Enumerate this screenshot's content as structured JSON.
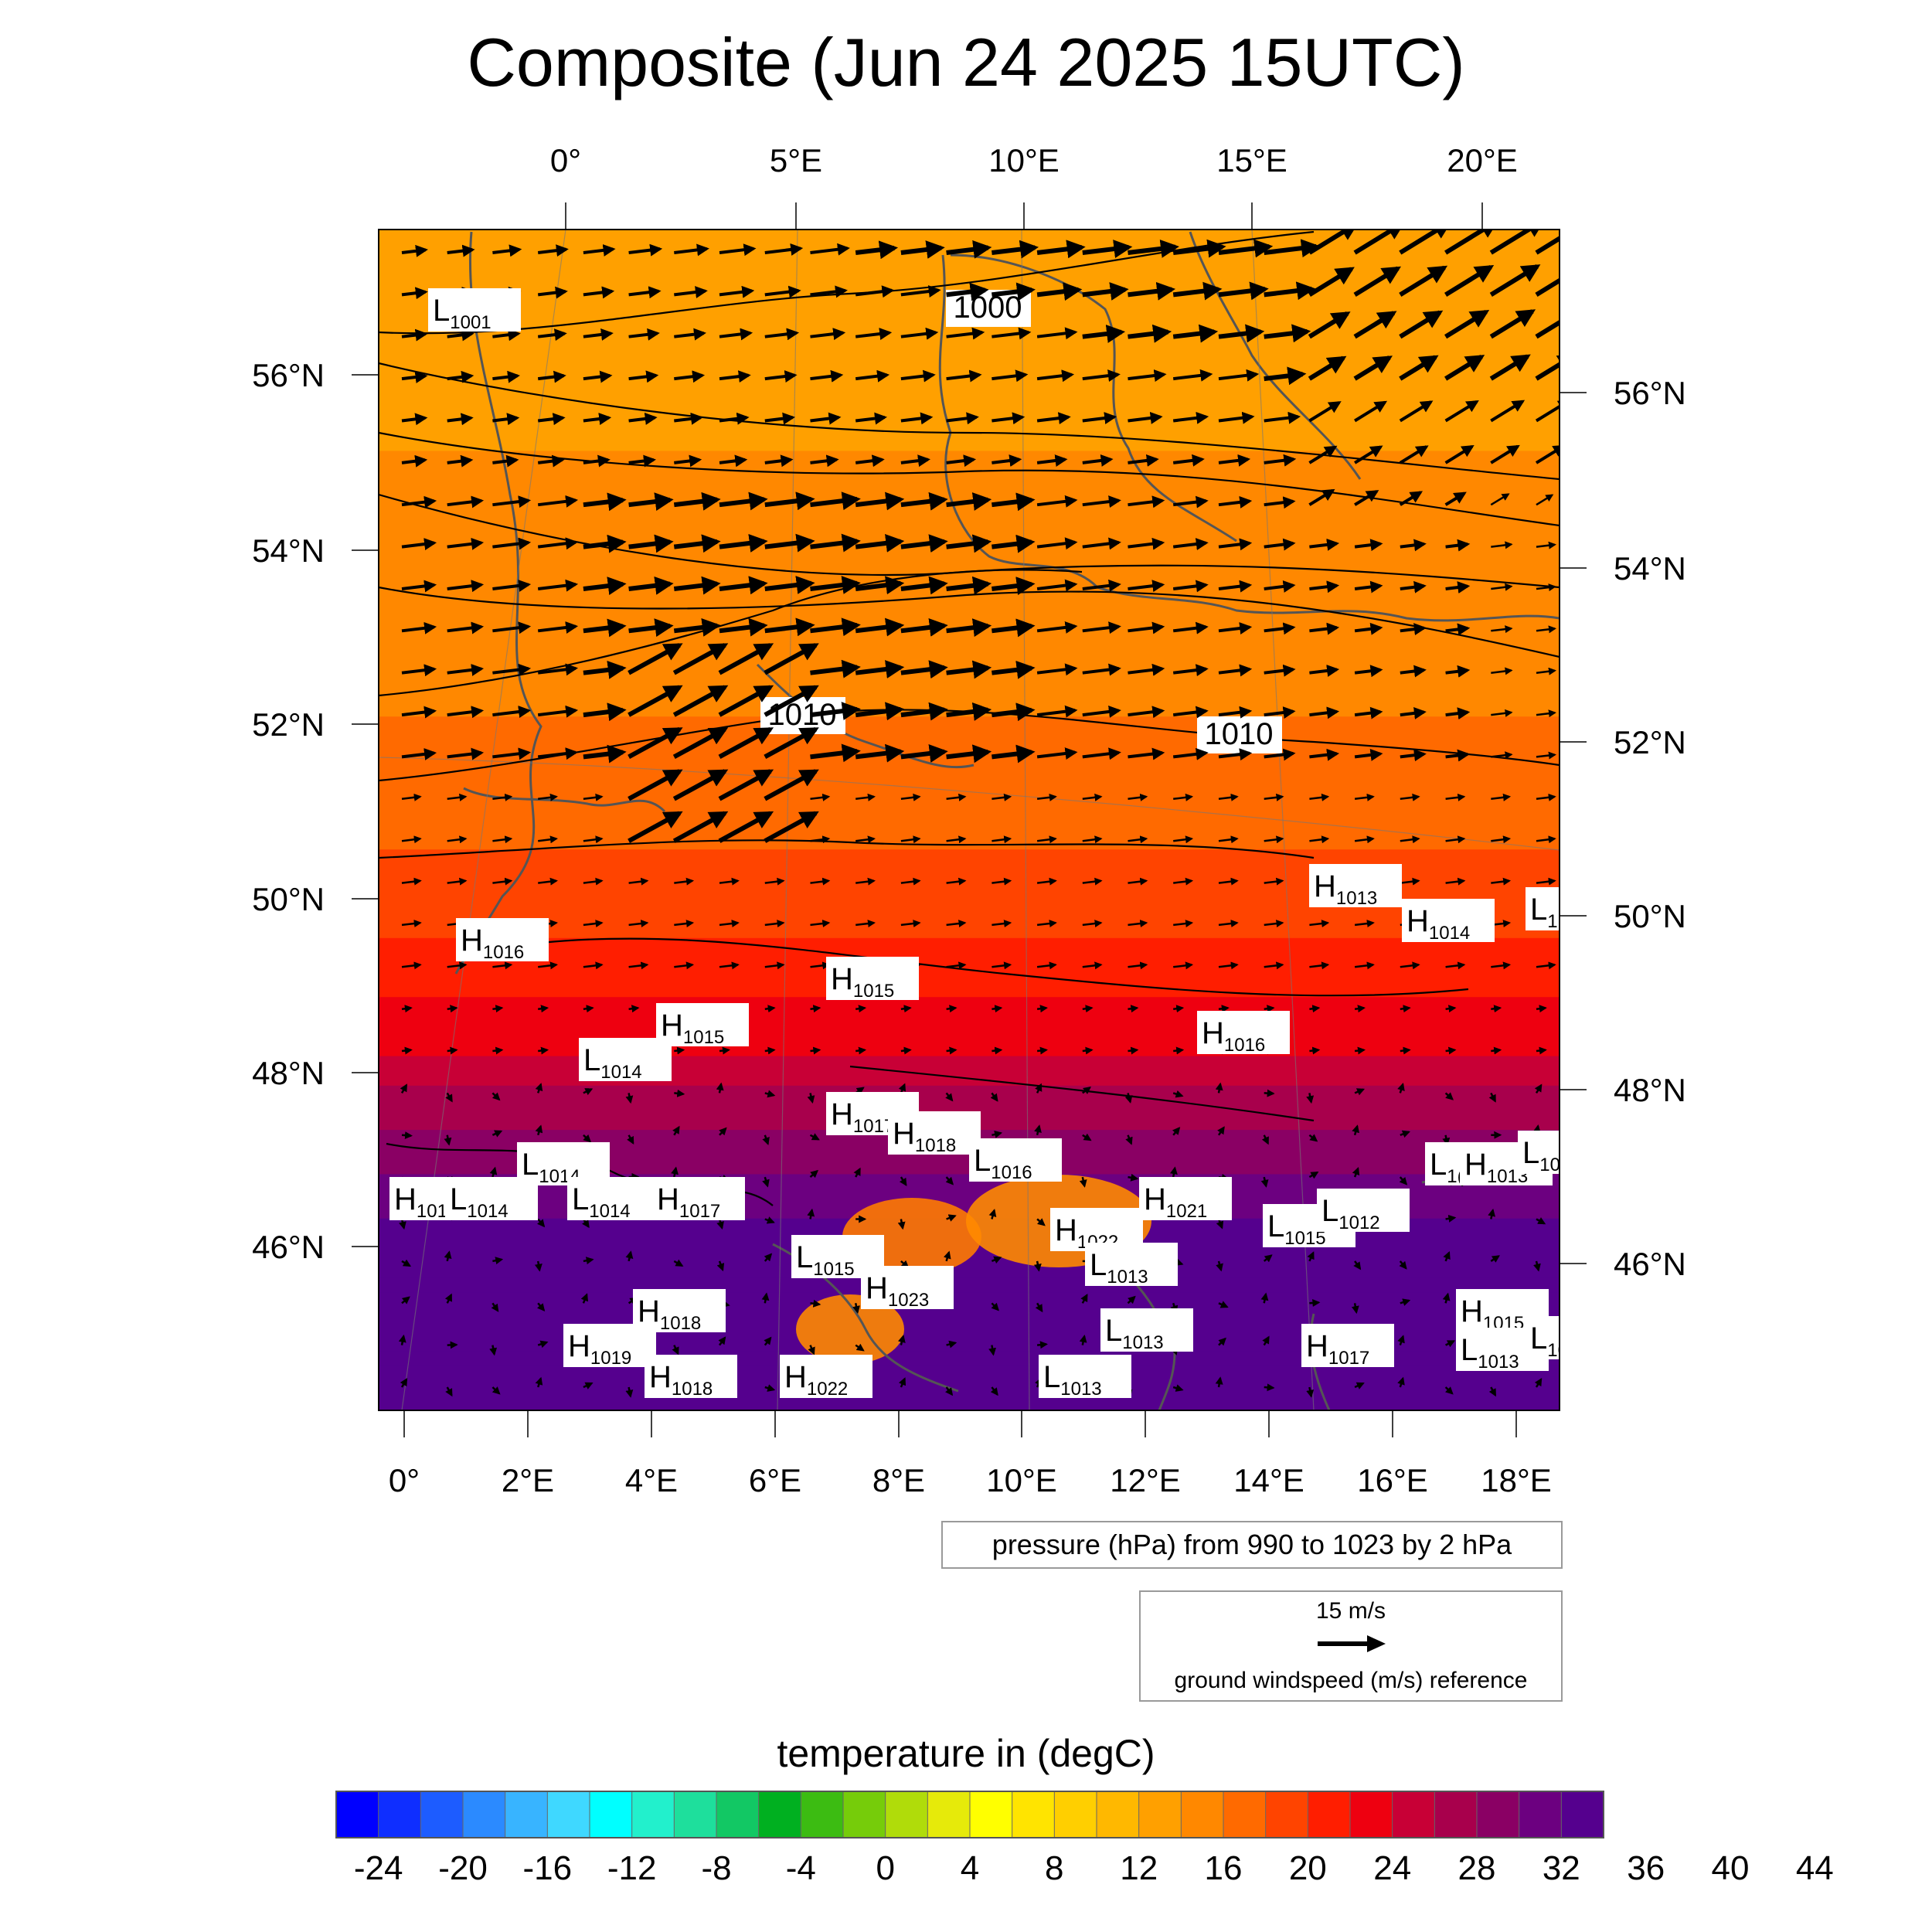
{
  "title": "Composite (Jun 24 2025 15UTC)",
  "colors": {
    "accent": "#000000",
    "colorbar": [
      "#0000ff",
      "#0f2eff",
      "#1d5cff",
      "#2b8aff",
      "#38b4ff",
      "#3fd8ff",
      "#00ffff",
      "#22f0cc",
      "#1edf9c",
      "#12c864",
      "#00b020",
      "#3cbc12",
      "#76cc0a",
      "#b0dc0a",
      "#e6ea0a",
      "#ffff00",
      "#ffe400",
      "#ffcf00",
      "#ffb800",
      "#ffa000",
      "#ff8800",
      "#ff6a00",
      "#ff4400",
      "#ff1e00",
      "#ee0010",
      "#c80036",
      "#a8004c",
      "#8a0064",
      "#6c0080",
      "#55008e"
    ]
  },
  "chart_data": {
    "type": "heatmap",
    "projection": "lambert_conformal",
    "lon_range": [
      -0.5,
      18.8
    ],
    "lat_range": [
      44.2,
      57.5
    ],
    "top_lon_ticks": [
      "0°",
      "5°E",
      "10°E",
      "15°E",
      "20°E"
    ],
    "bottom_lon_ticks": [
      "0°",
      "2°E",
      "4°E",
      "6°E",
      "8°E",
      "10°E",
      "12°E",
      "14°E",
      "16°E",
      "18°E"
    ],
    "left_lat_ticks": [
      "56°N",
      "54°N",
      "52°N",
      "50°N",
      "48°N",
      "46°N"
    ],
    "right_lat_ticks": [
      "56°N",
      "54°N",
      "52°N",
      "50°N",
      "48°N",
      "46°N"
    ],
    "temperature_field": {
      "unit": "degC",
      "by_latitude": [
        [
          57.5,
          13
        ],
        [
          55,
          14
        ],
        [
          53,
          15
        ],
        [
          51,
          17
        ],
        [
          49.5,
          20
        ],
        [
          48.2,
          24
        ],
        [
          47.2,
          29
        ],
        [
          46,
          33
        ],
        [
          44.2,
          34
        ]
      ]
    },
    "isobar_labels": [
      "1000",
      "1010",
      "1010"
    ],
    "pressure_centers": [
      {
        "type": "L",
        "value": "1001"
      },
      {
        "type": "H",
        "value": "1013"
      },
      {
        "type": "H",
        "value": "1014"
      },
      {
        "type": "L",
        "value": "1"
      },
      {
        "type": "H",
        "value": "1016"
      },
      {
        "type": "H",
        "value": "1015"
      },
      {
        "type": "H",
        "value": "1015"
      },
      {
        "type": "L",
        "value": "1014"
      },
      {
        "type": "H",
        "value": "1016"
      },
      {
        "type": "H",
        "value": "1017"
      },
      {
        "type": "H",
        "value": "1018"
      },
      {
        "type": "L",
        "value": "1016"
      },
      {
        "type": "L",
        "value": "1014"
      },
      {
        "type": "H",
        "value": "101"
      },
      {
        "type": "L",
        "value": "1014"
      },
      {
        "type": "L",
        "value": "1014"
      },
      {
        "type": "H",
        "value": "1017"
      },
      {
        "type": "H",
        "value": "1021"
      },
      {
        "type": "H",
        "value": "1022"
      },
      {
        "type": "L",
        "value": "1013"
      },
      {
        "type": "L",
        "value": "1015"
      },
      {
        "type": "L",
        "value": "1012"
      },
      {
        "type": "L",
        "value": "1015"
      },
      {
        "type": "H",
        "value": "1023"
      },
      {
        "type": "H",
        "value": "1018"
      },
      {
        "type": "H",
        "value": "1019"
      },
      {
        "type": "H",
        "value": "1018"
      },
      {
        "type": "H",
        "value": "1022"
      },
      {
        "type": "L",
        "value": "1013"
      },
      {
        "type": "L",
        "value": "1013"
      },
      {
        "type": "H",
        "value": "1017"
      },
      {
        "type": "L",
        "value": "1("
      },
      {
        "type": "H",
        "value": "1013"
      },
      {
        "type": "L",
        "value": "10"
      },
      {
        "type": "H",
        "value": "1015"
      },
      {
        "type": "L",
        "value": "1013"
      },
      {
        "type": "L",
        "value": "10"
      }
    ],
    "colorbar": {
      "title": "temperature in (degC)",
      "min": -26,
      "max": 46,
      "step": 2,
      "tick_labels": [
        "-24",
        "-20",
        "-16",
        "-12",
        "-8",
        "-4",
        "0",
        "4",
        "8",
        "12",
        "16",
        "20",
        "24",
        "28",
        "32",
        "36",
        "40",
        "44"
      ]
    }
  },
  "legend": {
    "pressure_note": "pressure (hPa) from 990 to 1023 by 2 hPa",
    "wind_ref_speed": "15 m/s",
    "wind_ref_caption": "ground windspeed (m/s) reference"
  }
}
